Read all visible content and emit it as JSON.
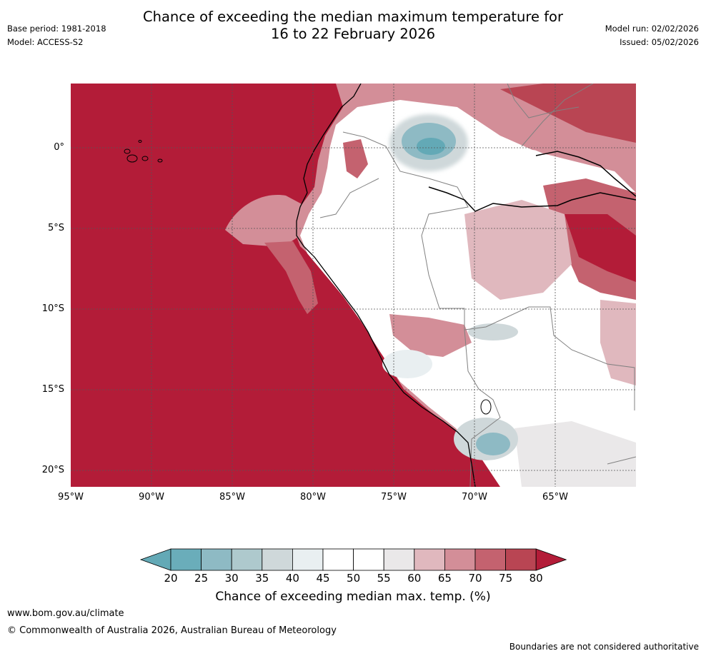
{
  "header": {
    "title_line1": "Chance of exceeding the median maximum temperature for",
    "title_line2": "16 to 22 February 2026",
    "base_period": "Base period: 1981-2018",
    "model": "Model: ACCESS-S2",
    "model_run": "Model run: 02/02/2026",
    "issued": "Issued: 05/02/2026"
  },
  "map": {
    "lat_labels": [
      "0°",
      "5°S",
      "10°S",
      "15°S",
      "20°S"
    ],
    "lon_labels": [
      "95°W",
      "90°W",
      "85°W",
      "80°W",
      "75°W",
      "70°W",
      "65°W"
    ],
    "ocean_color": "#b31c38"
  },
  "colorbar": {
    "ticks": [
      "20",
      "25",
      "30",
      "35",
      "40",
      "45",
      "50",
      "55",
      "60",
      "65",
      "70",
      "75",
      "80"
    ],
    "colors": [
      "#63a9b6",
      "#6aadba",
      "#8ebac4",
      "#aec9cd",
      "#cfd8da",
      "#e9eff1",
      "#ffffff",
      "#ffffff",
      "#eae8e9",
      "#e0b8be",
      "#d38e98",
      "#c4626f",
      "#b94553",
      "#b31c38"
    ],
    "label": "Chance of exceeding median max. temp. (%)"
  },
  "footer": {
    "url": "www.bom.gov.au/climate",
    "copyright": "© Commonwealth of Australia 2026, Australian Bureau of Meteorology",
    "disclaimer": "Boundaries are not considered authoritative"
  }
}
